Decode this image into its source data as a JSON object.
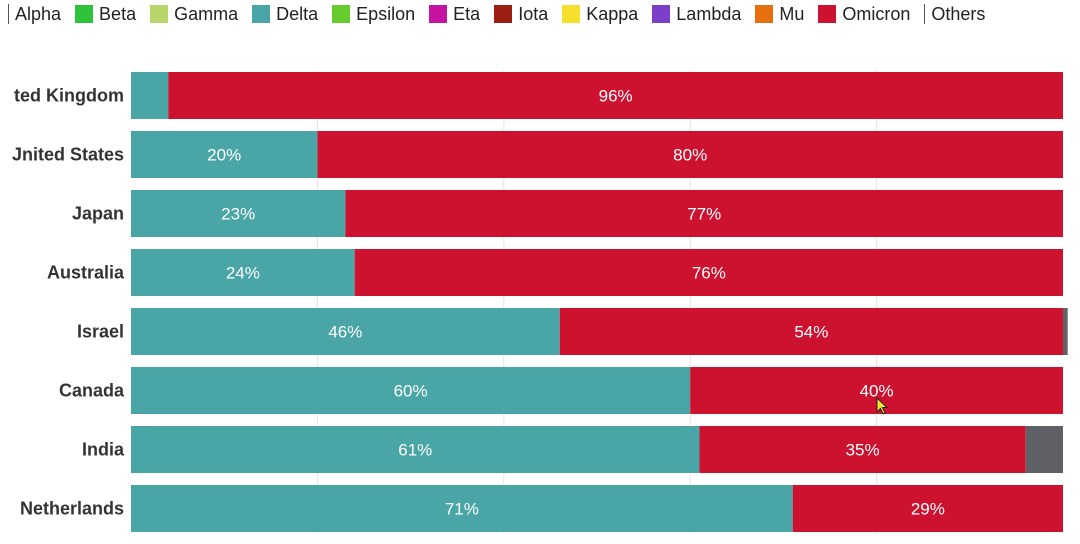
{
  "legend": [
    {
      "name": "Alpha",
      "color": null
    },
    {
      "name": "Beta",
      "color": "#2ec23a"
    },
    {
      "name": "Gamma",
      "color": "#b7d66a"
    },
    {
      "name": "Delta",
      "color": "#4aa6a6"
    },
    {
      "name": "Epsilon",
      "color": "#66cc2e"
    },
    {
      "name": "Eta",
      "color": "#c414a0"
    },
    {
      "name": "Iota",
      "color": "#9a1f12"
    },
    {
      "name": "Kappa",
      "color": "#f5e12c"
    },
    {
      "name": "Lambda",
      "color": "#7b3fc9"
    },
    {
      "name": "Mu",
      "color": "#e6700f"
    },
    {
      "name": "Omicron",
      "color": "#cd1230"
    },
    {
      "name": "Others",
      "color": null
    }
  ],
  "chart_data": {
    "type": "bar",
    "orientation": "horizontal",
    "stacked": true,
    "categories": [
      "ted Kingdom",
      "Jnited States",
      "Japan",
      "Australia",
      "Israel",
      "Canada",
      "India",
      "Netherlands"
    ],
    "series": [
      {
        "name": "Delta",
        "color": "#4aa6a6",
        "values": [
          4,
          20,
          23,
          24,
          46,
          60,
          61,
          71
        ],
        "labels": [
          "",
          "20%",
          "23%",
          "24%",
          "46%",
          "60%",
          "61%",
          "71%"
        ]
      },
      {
        "name": "Omicron",
        "color": "#cd1230",
        "values": [
          96,
          80,
          77,
          76,
          54,
          40,
          35,
          29
        ],
        "labels": [
          "96%",
          "80%",
          "77%",
          "76%",
          "54%",
          "40%",
          "35%",
          "29%"
        ]
      },
      {
        "name": "Others",
        "color": "#5f6166",
        "values": [
          0,
          0,
          0,
          0,
          0.5,
          0,
          4,
          0
        ],
        "labels": [
          "",
          "",
          "",
          "",
          "",
          "",
          "",
          ""
        ]
      }
    ],
    "xlim": [
      0,
      100
    ],
    "grid": true,
    "legend_position": "top"
  }
}
